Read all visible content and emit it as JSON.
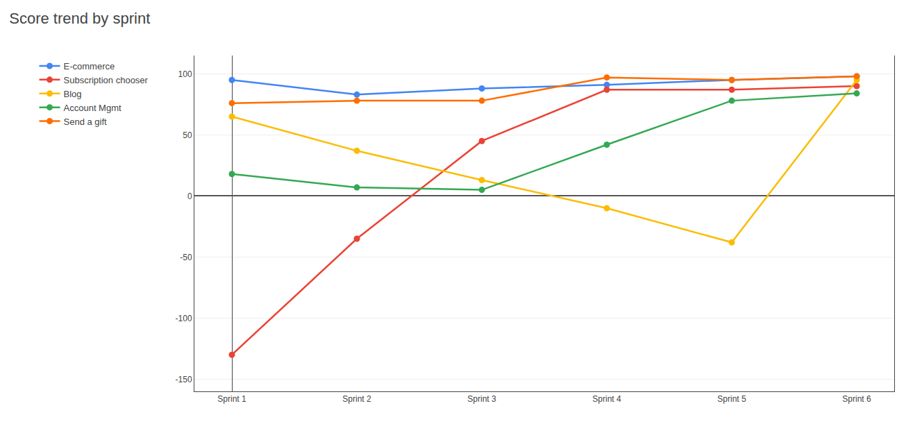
{
  "chart_data": {
    "type": "line",
    "title": "Score trend by sprint",
    "categories": [
      "Sprint 1",
      "Sprint 2",
      "Sprint 3",
      "Sprint 4",
      "Sprint 5",
      "Sprint 6"
    ],
    "series": [
      {
        "name": "E-commerce",
        "color": "#4285F4",
        "values": [
          95,
          83,
          88,
          91,
          95,
          98
        ]
      },
      {
        "name": "Subscription chooser",
        "color": "#EA4335",
        "values": [
          -130,
          -35,
          45,
          87,
          87,
          90
        ]
      },
      {
        "name": "Blog",
        "color": "#FBBC04",
        "values": [
          65,
          37,
          13,
          -10,
          -38,
          95
        ]
      },
      {
        "name": "Account Mgmt",
        "color": "#34A853",
        "values": [
          18,
          7,
          5,
          42,
          78,
          84
        ]
      },
      {
        "name": "Send a gift",
        "color": "#FF6D00",
        "values": [
          76,
          78,
          78,
          97,
          95,
          98
        ]
      }
    ],
    "ylim": [
      -160,
      115
    ],
    "yticks": [
      -150,
      -100,
      -50,
      0,
      50,
      100
    ],
    "grid": true,
    "legend": "left",
    "marker": "circle"
  }
}
